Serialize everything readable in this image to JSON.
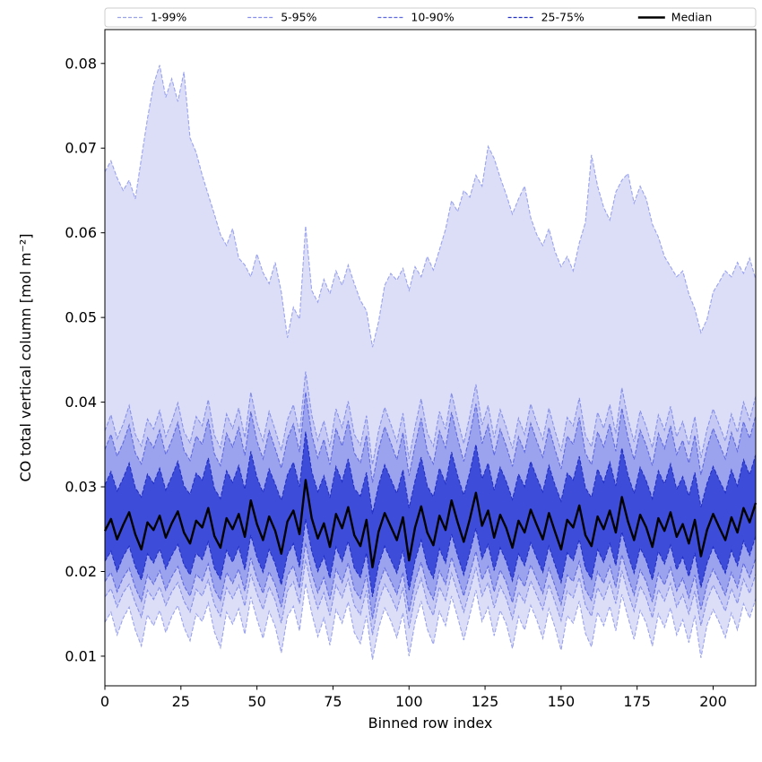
{
  "figure": {
    "xlabel": "Binned row index",
    "ylabel": "CO total vertical column [mol m⁻²]"
  },
  "legend": {
    "entries": [
      {
        "label": "1-99%",
        "color": "#9aa3ee",
        "style": "dashed"
      },
      {
        "label": "5-95%",
        "color": "#8690e9",
        "style": "dashed"
      },
      {
        "label": "10-90%",
        "color": "#5f6ae0",
        "style": "dashed"
      },
      {
        "label": "25-75%",
        "color": "#2230c4",
        "style": "dashed"
      },
      {
        "label": "Median",
        "color": "#000000",
        "style": "solid"
      }
    ]
  },
  "chart_data": {
    "type": "area",
    "title": "",
    "xlabel": "Binned row index",
    "ylabel": "CO total vertical column [mol m⁻²]",
    "xlim": [
      0,
      214
    ],
    "ylim": [
      0.0065,
      0.084
    ],
    "xticks": [
      0,
      25,
      50,
      75,
      100,
      125,
      150,
      175,
      200
    ],
    "yticks": [
      0.01,
      0.02,
      0.03,
      0.04,
      0.05,
      0.06,
      0.07,
      0.08
    ],
    "grid": false,
    "legend_position": "top-expanded",
    "x_start": 0,
    "x_step": 2,
    "band_defs": [
      {
        "label": "1-99%",
        "lower": "p1",
        "upper": "p99",
        "fill": "#dcdef8",
        "edge": "#9aa3ee"
      },
      {
        "label": "5-95%",
        "lower": "p5",
        "upper": "p95",
        "fill": "#c5c9f4",
        "edge": "#8690e9"
      },
      {
        "label": "10-90%",
        "lower": "p10",
        "upper": "p90",
        "fill": "#9ba3ee",
        "edge": "#5f6ae0"
      },
      {
        "label": "25-75%",
        "lower": "p25",
        "upper": "p75",
        "fill": "#3d4cd9",
        "edge": "#2230c4"
      }
    ],
    "median_style": {
      "color": "#000000",
      "width": 2.4
    },
    "series": {
      "p99": [
        0.0672,
        0.0685,
        0.0665,
        0.065,
        0.0662,
        0.064,
        0.0688,
        0.0735,
        0.0775,
        0.0798,
        0.076,
        0.0782,
        0.0755,
        0.079,
        0.0712,
        0.0695,
        0.0668,
        0.0645,
        0.0622,
        0.0598,
        0.0585,
        0.0605,
        0.057,
        0.0562,
        0.0548,
        0.0575,
        0.0553,
        0.054,
        0.0565,
        0.053,
        0.0476,
        0.0512,
        0.0498,
        0.0608,
        0.0532,
        0.0518,
        0.0545,
        0.0528,
        0.0555,
        0.0538,
        0.0562,
        0.054,
        0.052,
        0.0508,
        0.0465,
        0.0495,
        0.0538,
        0.0552,
        0.0544,
        0.0558,
        0.0532,
        0.056,
        0.0548,
        0.0572,
        0.0556,
        0.058,
        0.0604,
        0.0638,
        0.0625,
        0.065,
        0.0642,
        0.0668,
        0.0655,
        0.0702,
        0.0688,
        0.0665,
        0.0645,
        0.0622,
        0.064,
        0.0655,
        0.0618,
        0.0598,
        0.0585,
        0.0605,
        0.0578,
        0.056,
        0.0572,
        0.0555,
        0.0588,
        0.0612,
        0.0692,
        0.0655,
        0.063,
        0.0615,
        0.0648,
        0.0662,
        0.067,
        0.0635,
        0.0655,
        0.064,
        0.061,
        0.0595,
        0.0572,
        0.056,
        0.0548,
        0.0555,
        0.0528,
        0.051,
        0.0482,
        0.0498,
        0.053,
        0.0542,
        0.0555,
        0.0548,
        0.0565,
        0.0552,
        0.057,
        0.0545
      ],
      "p95": [
        0.0366,
        0.0385,
        0.0357,
        0.0374,
        0.0396,
        0.0362,
        0.0348,
        0.038,
        0.0368,
        0.039,
        0.0359,
        0.0377,
        0.0399,
        0.0365,
        0.0352,
        0.0383,
        0.0372,
        0.0403,
        0.0361,
        0.0346,
        0.0386,
        0.0369,
        0.0393,
        0.0358,
        0.0412,
        0.0376,
        0.0354,
        0.0389,
        0.0367,
        0.0343,
        0.0379,
        0.0397,
        0.0363,
        0.0436,
        0.0385,
        0.0355,
        0.0378,
        0.0347,
        0.0392,
        0.037,
        0.0401,
        0.0362,
        0.0349,
        0.0384,
        0.0326,
        0.0366,
        0.0394,
        0.0374,
        0.0353,
        0.0387,
        0.0333,
        0.0371,
        0.0404,
        0.0364,
        0.0348,
        0.0389,
        0.0368,
        0.0411,
        0.0379,
        0.0351,
        0.0384,
        0.0421,
        0.0373,
        0.0396,
        0.0358,
        0.0391,
        0.037,
        0.0345,
        0.0381,
        0.0362,
        0.0398,
        0.0376,
        0.0356,
        0.0393,
        0.0366,
        0.0342,
        0.0382,
        0.0372,
        0.0405,
        0.0361,
        0.0347,
        0.0388,
        0.0369,
        0.0397,
        0.0363,
        0.0417,
        0.038,
        0.0353,
        0.039,
        0.0371,
        0.0346,
        0.0385,
        0.0367,
        0.0395,
        0.0359,
        0.0377,
        0.0349,
        0.0383,
        0.0334,
        0.0368,
        0.0392,
        0.0373,
        0.0354,
        0.0386,
        0.0364,
        0.04,
        0.0379,
        0.0407
      ],
      "p90": [
        0.0344,
        0.0362,
        0.0336,
        0.0352,
        0.0373,
        0.034,
        0.0327,
        0.0358,
        0.0346,
        0.0367,
        0.0338,
        0.0355,
        0.0376,
        0.0343,
        0.0331,
        0.036,
        0.035,
        0.038,
        0.0339,
        0.0325,
        0.0363,
        0.0347,
        0.037,
        0.0337,
        0.0389,
        0.0354,
        0.0333,
        0.0366,
        0.0345,
        0.0322,
        0.0357,
        0.0374,
        0.0341,
        0.0412,
        0.0362,
        0.0334,
        0.0356,
        0.0326,
        0.0369,
        0.0348,
        0.0378,
        0.034,
        0.0328,
        0.0361,
        0.0305,
        0.0344,
        0.0371,
        0.0352,
        0.0332,
        0.0364,
        0.0313,
        0.0349,
        0.0381,
        0.0342,
        0.0327,
        0.0366,
        0.0346,
        0.0388,
        0.0357,
        0.033,
        0.0361,
        0.0398,
        0.0351,
        0.0373,
        0.0337,
        0.0368,
        0.0348,
        0.0324,
        0.0359,
        0.0341,
        0.0375,
        0.0354,
        0.0335,
        0.037,
        0.0344,
        0.0321,
        0.036,
        0.035,
        0.0382,
        0.034,
        0.0326,
        0.0365,
        0.0347,
        0.0374,
        0.0342,
        0.0393,
        0.0358,
        0.0332,
        0.0367,
        0.0349,
        0.0325,
        0.0363,
        0.0345,
        0.0372,
        0.0338,
        0.0355,
        0.0328,
        0.0361,
        0.0314,
        0.0346,
        0.0369,
        0.0351,
        0.0333,
        0.0364,
        0.0342,
        0.0377,
        0.0357,
        0.0384
      ],
      "p75": [
        0.0302,
        0.0318,
        0.0295,
        0.031,
        0.0328,
        0.0299,
        0.0288,
        0.0315,
        0.0304,
        0.0322,
        0.0296,
        0.0312,
        0.033,
        0.0301,
        0.0291,
        0.0316,
        0.0308,
        0.0334,
        0.0298,
        0.0286,
        0.0319,
        0.0305,
        0.0325,
        0.0297,
        0.0342,
        0.0311,
        0.0293,
        0.0321,
        0.0303,
        0.0284,
        0.0314,
        0.0329,
        0.03,
        0.0365,
        0.0318,
        0.0294,
        0.0313,
        0.0287,
        0.0324,
        0.0306,
        0.0333,
        0.0298,
        0.0289,
        0.0317,
        0.0268,
        0.0302,
        0.0326,
        0.0309,
        0.0292,
        0.032,
        0.0275,
        0.0307,
        0.0335,
        0.0301,
        0.0288,
        0.0322,
        0.0304,
        0.0341,
        0.0313,
        0.029,
        0.0317,
        0.035,
        0.0309,
        0.0328,
        0.0296,
        0.0323,
        0.0306,
        0.0285,
        0.0315,
        0.03,
        0.033,
        0.0311,
        0.0294,
        0.0325,
        0.0302,
        0.0283,
        0.0316,
        0.0308,
        0.0336,
        0.0299,
        0.0287,
        0.0321,
        0.0305,
        0.0329,
        0.0301,
        0.0346,
        0.0314,
        0.0292,
        0.0323,
        0.0307,
        0.0286,
        0.0319,
        0.0303,
        0.0327,
        0.0297,
        0.0312,
        0.0289,
        0.0317,
        0.0276,
        0.0304,
        0.0324,
        0.0308,
        0.0293,
        0.032,
        0.0301,
        0.0332,
        0.0314,
        0.0338
      ],
      "median": [
        0.0248,
        0.0262,
        0.0238,
        0.0255,
        0.027,
        0.0244,
        0.0226,
        0.0258,
        0.0249,
        0.0266,
        0.024,
        0.0257,
        0.0271,
        0.0246,
        0.0233,
        0.026,
        0.0252,
        0.0275,
        0.0242,
        0.0228,
        0.0263,
        0.025,
        0.0268,
        0.0241,
        0.0284,
        0.0256,
        0.0237,
        0.0265,
        0.0248,
        0.0221,
        0.0259,
        0.0272,
        0.0244,
        0.0308,
        0.0263,
        0.0239,
        0.0257,
        0.0229,
        0.0268,
        0.0251,
        0.0276,
        0.0243,
        0.023,
        0.0261,
        0.0205,
        0.0247,
        0.0269,
        0.0253,
        0.0237,
        0.0264,
        0.0213,
        0.0252,
        0.0277,
        0.0246,
        0.0231,
        0.0266,
        0.0249,
        0.0284,
        0.0258,
        0.0235,
        0.0262,
        0.0293,
        0.0254,
        0.0272,
        0.024,
        0.0267,
        0.0251,
        0.0228,
        0.026,
        0.0246,
        0.0273,
        0.0255,
        0.0238,
        0.0269,
        0.0247,
        0.0226,
        0.0261,
        0.0252,
        0.0278,
        0.0243,
        0.023,
        0.0265,
        0.025,
        0.0272,
        0.0246,
        0.0288,
        0.0259,
        0.0237,
        0.0267,
        0.0252,
        0.0229,
        0.0263,
        0.0248,
        0.027,
        0.0241,
        0.0256,
        0.0233,
        0.0261,
        0.0218,
        0.0249,
        0.0268,
        0.0252,
        0.0237,
        0.0264,
        0.0246,
        0.0275,
        0.0258,
        0.0281
      ],
      "p25": [
        0.0212,
        0.0224,
        0.02,
        0.0218,
        0.023,
        0.0206,
        0.019,
        0.0221,
        0.021,
        0.0227,
        0.0203,
        0.0219,
        0.0232,
        0.0208,
        0.0196,
        0.0222,
        0.0214,
        0.0235,
        0.0204,
        0.0191,
        0.0225,
        0.0211,
        0.0229,
        0.0202,
        0.0243,
        0.0217,
        0.0199,
        0.0226,
        0.0209,
        0.0184,
        0.022,
        0.0233,
        0.0205,
        0.0262,
        0.0224,
        0.02,
        0.0218,
        0.0192,
        0.0229,
        0.0212,
        0.0236,
        0.0204,
        0.0193,
        0.0222,
        0.017,
        0.0208,
        0.023,
        0.0214,
        0.0198,
        0.0225,
        0.0178,
        0.0213,
        0.0237,
        0.0207,
        0.0192,
        0.0227,
        0.021,
        0.0244,
        0.0219,
        0.0196,
        0.0223,
        0.0251,
        0.0215,
        0.0232,
        0.0201,
        0.0228,
        0.0212,
        0.0189,
        0.0221,
        0.0207,
        0.0234,
        0.0216,
        0.0199,
        0.023,
        0.0208,
        0.0187,
        0.0222,
        0.0213,
        0.0238,
        0.0204,
        0.0191,
        0.0226,
        0.0211,
        0.0233,
        0.0207,
        0.0247,
        0.022,
        0.0198,
        0.0228,
        0.0213,
        0.019,
        0.0224,
        0.0209,
        0.0231,
        0.0202,
        0.0217,
        0.0194,
        0.0222,
        0.0181,
        0.021,
        0.0229,
        0.0213,
        0.0198,
        0.0225,
        0.0207,
        0.0236,
        0.0219,
        0.0242
      ],
      "p10": [
        0.0188,
        0.0199,
        0.0176,
        0.0193,
        0.0204,
        0.0181,
        0.0165,
        0.0196,
        0.0185,
        0.0201,
        0.0178,
        0.0194,
        0.0206,
        0.0183,
        0.0171,
        0.0197,
        0.0189,
        0.0209,
        0.0179,
        0.0166,
        0.0199,
        0.0186,
        0.0203,
        0.0177,
        0.0216,
        0.0192,
        0.0174,
        0.02,
        0.0184,
        0.0158,
        0.0195,
        0.0207,
        0.018,
        0.0234,
        0.0198,
        0.0175,
        0.0193,
        0.0167,
        0.0203,
        0.0187,
        0.021,
        0.0179,
        0.0168,
        0.0196,
        0.0144,
        0.0183,
        0.0204,
        0.0189,
        0.0173,
        0.0199,
        0.0152,
        0.0188,
        0.0211,
        0.0182,
        0.0167,
        0.0201,
        0.0185,
        0.0217,
        0.0194,
        0.0171,
        0.0197,
        0.0224,
        0.019,
        0.0206,
        0.0176,
        0.0202,
        0.0187,
        0.0163,
        0.0195,
        0.0182,
        0.0208,
        0.0191,
        0.0174,
        0.0204,
        0.0183,
        0.0161,
        0.0196,
        0.0188,
        0.0212,
        0.0179,
        0.0166,
        0.02,
        0.0186,
        0.0207,
        0.0181,
        0.022,
        0.0194,
        0.0172,
        0.0202,
        0.0188,
        0.0164,
        0.0198,
        0.0184,
        0.0205,
        0.0177,
        0.0192,
        0.0169,
        0.0196,
        0.0155,
        0.0185,
        0.0203,
        0.0188,
        0.0172,
        0.0199,
        0.0181,
        0.021,
        0.0193,
        0.0216
      ],
      "p5": [
        0.017,
        0.018,
        0.0158,
        0.0175,
        0.0185,
        0.0163,
        0.0146,
        0.0178,
        0.0167,
        0.0182,
        0.016,
        0.0176,
        0.0187,
        0.0165,
        0.0152,
        0.0179,
        0.0171,
        0.019,
        0.0161,
        0.0147,
        0.0181,
        0.0168,
        0.0184,
        0.0159,
        0.0197,
        0.0174,
        0.0155,
        0.0182,
        0.0166,
        0.0139,
        0.0177,
        0.0188,
        0.0162,
        0.0214,
        0.018,
        0.0156,
        0.0175,
        0.0148,
        0.0184,
        0.0169,
        0.0191,
        0.016,
        0.0149,
        0.0178,
        0.0125,
        0.0164,
        0.0185,
        0.0171,
        0.0154,
        0.0181,
        0.0133,
        0.017,
        0.0192,
        0.0163,
        0.0148,
        0.0182,
        0.0166,
        0.0198,
        0.0175,
        0.0152,
        0.0178,
        0.0205,
        0.0171,
        0.0187,
        0.0157,
        0.0183,
        0.0168,
        0.0144,
        0.0176,
        0.0163,
        0.0189,
        0.0172,
        0.0155,
        0.0185,
        0.0164,
        0.0142,
        0.0177,
        0.0169,
        0.0193,
        0.016,
        0.0147,
        0.0181,
        0.0167,
        0.0188,
        0.0162,
        0.0201,
        0.0175,
        0.0153,
        0.0183,
        0.0169,
        0.0145,
        0.0179,
        0.0165,
        0.0186,
        0.0158,
        0.0173,
        0.015,
        0.0177,
        0.0136,
        0.0166,
        0.0184,
        0.0169,
        0.0153,
        0.018,
        0.0162,
        0.0191,
        0.0174,
        0.0197
      ],
      "p1": [
        0.014,
        0.0152,
        0.0125,
        0.0145,
        0.0158,
        0.0131,
        0.0112,
        0.0149,
        0.0136,
        0.0154,
        0.0128,
        0.0147,
        0.016,
        0.0134,
        0.0118,
        0.015,
        0.0141,
        0.0163,
        0.0129,
        0.011,
        0.0152,
        0.0138,
        0.0156,
        0.0126,
        0.017,
        0.0144,
        0.0121,
        0.0153,
        0.0135,
        0.0104,
        0.0147,
        0.0159,
        0.013,
        0.0186,
        0.0151,
        0.0123,
        0.0145,
        0.0113,
        0.0155,
        0.0139,
        0.0164,
        0.0128,
        0.0115,
        0.0148,
        0.0096,
        0.0133,
        0.0157,
        0.0142,
        0.0122,
        0.0151,
        0.01,
        0.014,
        0.0165,
        0.0132,
        0.0114,
        0.0153,
        0.0136,
        0.0171,
        0.0146,
        0.0119,
        0.0149,
        0.0178,
        0.0141,
        0.0158,
        0.0124,
        0.0154,
        0.0138,
        0.0109,
        0.0147,
        0.0131,
        0.016,
        0.0143,
        0.0121,
        0.0156,
        0.0134,
        0.0107,
        0.0148,
        0.0139,
        0.0165,
        0.0127,
        0.0111,
        0.0152,
        0.0136,
        0.0159,
        0.013,
        0.0173,
        0.0146,
        0.012,
        0.0154,
        0.0139,
        0.0112,
        0.015,
        0.0134,
        0.0157,
        0.0125,
        0.0143,
        0.0116,
        0.0148,
        0.0098,
        0.0137,
        0.0155,
        0.014,
        0.0122,
        0.0151,
        0.0131,
        0.0162,
        0.0145,
        0.0168
      ]
    }
  }
}
